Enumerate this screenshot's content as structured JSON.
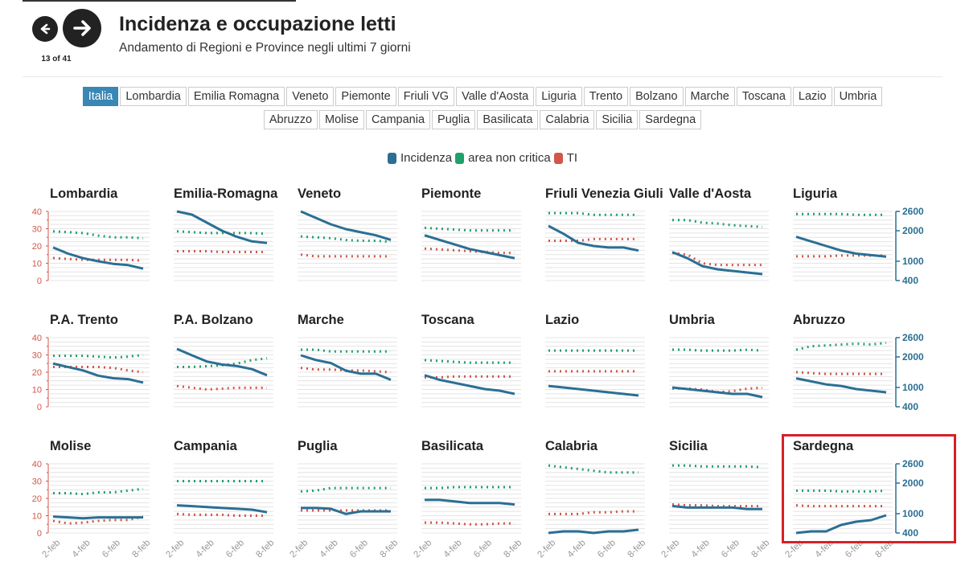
{
  "header": {
    "title": "Incidenza e occupazione letti",
    "subtitle": "Andamento di Regioni e Province negli ultimi 7 giorni",
    "counter": "13 of 41"
  },
  "tabs_row1": [
    "Italia",
    "Lombardia",
    "Emilia Romagna",
    "Veneto",
    "Piemonte",
    "Friuli VG",
    "Valle d'Aosta",
    "Liguria",
    "Trento",
    "Bolzano",
    "Marche",
    "Toscana",
    "Lazio",
    "Umbria"
  ],
  "tabs_row2": [
    "Abruzzo",
    "Molise",
    "Campania",
    "Puglia",
    "Basilicata",
    "Calabria",
    "Sicilia",
    "Sardegna"
  ],
  "active_tab": "Italia",
  "legend": [
    {
      "label": "Incidenza",
      "color": "#2b6f94"
    },
    {
      "label": "area non critica",
      "color": "#20a06a"
    },
    {
      "label": "TI",
      "color": "#d0574a"
    }
  ],
  "chart_data": {
    "type": "line",
    "x": [
      "2-feb",
      "3-feb",
      "4-feb",
      "5-feb",
      "6-feb",
      "7-feb",
      "8-feb"
    ],
    "x_tick_labels": [
      "2-feb",
      "4-feb",
      "6-feb",
      "8-feb"
    ],
    "left_axis": {
      "ticks": [
        0,
        10,
        20,
        30,
        40
      ],
      "ylim": [
        0,
        40
      ]
    },
    "right_axis": {
      "ticks": [
        400,
        1000,
        2000,
        2600
      ],
      "color": "#2b6f94"
    },
    "series_names": [
      "Incidenza",
      "area non critica",
      "TI"
    ],
    "panels": [
      {
        "name": "Lombardia",
        "incidenza": [
          1450,
          1250,
          1100,
          1000,
          920,
          880,
          770
        ],
        "area_non_critica": [
          28.5,
          28,
          27.5,
          26,
          25,
          25,
          24.5
        ],
        "ti": [
          13,
          12.5,
          12,
          12,
          12,
          12,
          11.5
        ]
      },
      {
        "name": "Emilia-Romagna",
        "incidenza": [
          2600,
          2500,
          2250,
          2000,
          1800,
          1650,
          1600
        ],
        "area_non_critica": [
          28.5,
          28,
          27.5,
          27.5,
          27.5,
          27.5,
          27
        ],
        "ti": [
          17,
          17,
          17,
          16.5,
          16.5,
          16.5,
          16.5
        ]
      },
      {
        "name": "Veneto",
        "incidenza": [
          2600,
          2400,
          2200,
          2050,
          1950,
          1850,
          1700
        ],
        "area_non_critica": [
          25.5,
          25,
          24.5,
          23.5,
          23,
          23,
          22.5
        ],
        "ti": [
          15,
          14,
          14,
          14,
          14,
          14,
          14
        ]
      },
      {
        "name": "Piemonte",
        "incidenza": [
          1850,
          1700,
          1550,
          1400,
          1300,
          1200,
          1100
        ],
        "area_non_critica": [
          30.5,
          30,
          29.5,
          29,
          29,
          29,
          29
        ],
        "ti": [
          18.5,
          18,
          17.5,
          17,
          16.5,
          16,
          16
        ]
      },
      {
        "name": "Friuli Venezia Giulia",
        "incidenza": [
          2150,
          1900,
          1600,
          1500,
          1450,
          1450,
          1350
        ],
        "area_non_critica": [
          39,
          39,
          39,
          38,
          38,
          38,
          38
        ],
        "ti": [
          23,
          23,
          23,
          24,
          24,
          24,
          24
        ]
      },
      {
        "name": "Valle d'Aosta",
        "incidenza": [
          1300,
          1100,
          850,
          750,
          700,
          650,
          600
        ],
        "area_non_critica": [
          35,
          35,
          33.5,
          33,
          32,
          31.5,
          31
        ],
        "ti": [
          16,
          15,
          10,
          9,
          9,
          9,
          9
        ]
      },
      {
        "name": "Liguria",
        "incidenza": [
          1800,
          1650,
          1500,
          1350,
          1250,
          1200,
          1150
        ],
        "area_non_critica": [
          38.5,
          38.5,
          38.5,
          38.5,
          38,
          38,
          38
        ],
        "ti": [
          14,
          14,
          14,
          14.5,
          14.5,
          14.5,
          14.5
        ]
      },
      {
        "name": "P.A. Trento",
        "incidenza": [
          25,
          23,
          21,
          18,
          16.5,
          16,
          14
        ],
        "area_non_critica": [
          29.5,
          29.5,
          29.5,
          29,
          28.5,
          29,
          30
        ],
        "ti": [
          23,
          23,
          23,
          23,
          22.5,
          21,
          20
        ]
      },
      {
        "name": "P.A. Bolzano",
        "incidenza": [
          2250,
          2050,
          1850,
          1750,
          1700,
          1600,
          1400
        ],
        "area_non_critica": [
          23,
          23,
          23.5,
          24,
          25,
          27,
          28
        ],
        "ti": [
          12,
          11,
          10,
          10.5,
          11,
          11,
          11
        ]
      },
      {
        "name": "Marche",
        "incidenza": [
          2050,
          1900,
          1800,
          1550,
          1450,
          1450,
          1250
        ],
        "area_non_critica": [
          33,
          33,
          32,
          32,
          32,
          32,
          32
        ],
        "ti": [
          22.5,
          21.5,
          21.5,
          21,
          21,
          20.5,
          20
        ]
      },
      {
        "name": "Toscana",
        "incidenza": [
          1400,
          1250,
          1150,
          1050,
          950,
          900,
          800
        ],
        "area_non_critica": [
          27,
          26.5,
          26,
          25.5,
          25.5,
          25.5,
          25.5
        ],
        "ti": [
          17,
          17,
          17.5,
          17.5,
          17.5,
          17.5,
          17.5
        ]
      },
      {
        "name": "Lazio",
        "incidenza": [
          1050,
          1000,
          950,
          900,
          850,
          800,
          750
        ],
        "area_non_critica": [
          32.5,
          32.5,
          32.5,
          32.5,
          32.5,
          32.5,
          32.5
        ],
        "ti": [
          20.5,
          20.5,
          20.5,
          20.5,
          20.5,
          20.5,
          20.5
        ]
      },
      {
        "name": "Umbria",
        "incidenza": [
          1000,
          950,
          900,
          850,
          800,
          800,
          700
        ],
        "area_non_critica": [
          33,
          33,
          32.5,
          32.5,
          32.5,
          33,
          32.5
        ],
        "ti": [
          10.5,
          10.5,
          10,
          8.5,
          9,
          10.5,
          11
        ]
      },
      {
        "name": "Abruzzo",
        "incidenza": [
          1300,
          1200,
          1100,
          1050,
          950,
          900,
          850
        ],
        "area_non_critica": [
          33,
          35,
          35.5,
          36,
          36.5,
          36,
          37
        ],
        "ti": [
          20,
          19.5,
          19,
          19,
          19,
          19,
          19
        ]
      },
      {
        "name": "Molise",
        "incidenza": [
          9.5,
          9,
          8.5,
          9,
          9,
          9,
          9
        ],
        "area_non_critica": [
          23,
          23,
          22.5,
          23.5,
          23.5,
          24.5,
          25.5
        ],
        "ti": [
          7,
          5.5,
          6,
          7,
          7.5,
          7.5,
          9.5
        ]
      },
      {
        "name": "Campania",
        "incidenza": [
          16,
          15.5,
          15,
          14.5,
          14,
          13.5,
          12
        ],
        "area_non_critica": [
          30,
          30,
          30,
          30,
          30,
          30,
          30
        ],
        "ti": [
          11,
          10.5,
          10.5,
          10.5,
          10,
          10,
          10
        ]
      },
      {
        "name": "Puglia",
        "incidenza": [
          14.5,
          14.5,
          14,
          11,
          12.5,
          12.5,
          12.5
        ],
        "area_non_critica": [
          24,
          24.5,
          26,
          26,
          26,
          26,
          26
        ],
        "ti": [
          13,
          13,
          13,
          13,
          13,
          13,
          13
        ]
      },
      {
        "name": "Basilicata",
        "incidenza": [
          1450,
          1450,
          1400,
          1350,
          1350,
          1350,
          1300
        ],
        "area_non_critica": [
          26,
          26,
          26.5,
          26.5,
          26.5,
          26.5,
          26.5
        ],
        "ti": [
          6,
          6,
          5.5,
          5,
          5,
          5.5,
          5.5
        ]
      },
      {
        "name": "Calabria",
        "incidenza": [
          400,
          450,
          450,
          400,
          450,
          450,
          500
        ],
        "area_non_critica": [
          39,
          38,
          37,
          36,
          35,
          35,
          35
        ],
        "ti": [
          11,
          11,
          11,
          12,
          12,
          12.5,
          12.5
        ]
      },
      {
        "name": "Sicilia",
        "incidenza": [
          1250,
          1200,
          1200,
          1200,
          1200,
          1150,
          1150
        ],
        "area_non_critica": [
          39,
          39,
          38.5,
          38.5,
          38.5,
          38.5,
          38
        ],
        "ti": [
          16.5,
          16,
          16,
          15.5,
          15.5,
          15.5,
          15.5
        ]
      },
      {
        "name": "Sardegna",
        "incidenza": [
          400,
          450,
          450,
          650,
          750,
          800,
          950
        ],
        "area_non_critica": [
          24.5,
          24.5,
          24.5,
          24,
          24,
          24,
          24.5
        ],
        "ti": [
          16,
          15.5,
          15.5,
          15.5,
          15.5,
          15.5,
          15.5
        ]
      }
    ],
    "highlighted_panel": "Sardegna",
    "grid": true
  }
}
